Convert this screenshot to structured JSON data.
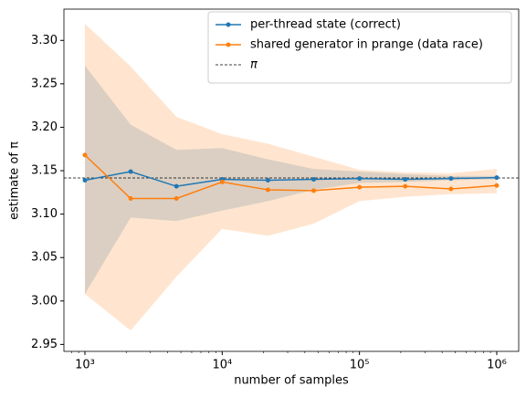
{
  "chart_data": {
    "type": "line",
    "x_label": "number of samples",
    "y_label": "estimate of π",
    "log_x": true,
    "x": [
      1000,
      2154,
      4642,
      10000,
      21544,
      46416,
      100000,
      215443,
      464159,
      1000000
    ],
    "xlim": [
      703,
      1445000
    ],
    "ylim": [
      2.942,
      3.336
    ],
    "xticks": [
      {
        "value": 1000,
        "label": "10³"
      },
      {
        "value": 10000,
        "label": "10⁴"
      },
      {
        "value": 100000,
        "label": "10⁵"
      },
      {
        "value": 1000000,
        "label": "10⁶"
      }
    ],
    "yticks": [
      {
        "value": 2.95,
        "label": "2.95"
      },
      {
        "value": 3.0,
        "label": "3.00"
      },
      {
        "value": 3.05,
        "label": "3.05"
      },
      {
        "value": 3.1,
        "label": "3.10"
      },
      {
        "value": 3.15,
        "label": "3.15"
      },
      {
        "value": 3.2,
        "label": "3.20"
      },
      {
        "value": 3.25,
        "label": "3.25"
      },
      {
        "value": 3.3,
        "label": "3.30"
      }
    ],
    "series": [
      {
        "name": "per-thread state (correct)",
        "color": "#1f77b4",
        "values": [
          3.139,
          3.149,
          3.132,
          3.14,
          3.139,
          3.14,
          3.141,
          3.14,
          3.141,
          3.142
        ],
        "upper": [
          3.271,
          3.203,
          3.174,
          3.176,
          3.163,
          3.152,
          3.149,
          3.146,
          3.144,
          3.144
        ],
        "lower": [
          3.008,
          3.096,
          3.092,
          3.104,
          3.115,
          3.128,
          3.136,
          3.137,
          3.139,
          3.14
        ]
      },
      {
        "name": "shared generator in prange (data race)",
        "color": "#ff7f0e",
        "values": [
          3.168,
          3.118,
          3.118,
          3.137,
          3.128,
          3.127,
          3.131,
          3.132,
          3.129,
          3.133
        ],
        "upper": [
          3.319,
          3.27,
          3.212,
          3.192,
          3.181,
          3.166,
          3.151,
          3.148,
          3.147,
          3.152
        ],
        "lower": [
          3.008,
          2.966,
          3.028,
          3.083,
          3.075,
          3.089,
          3.115,
          3.12,
          3.123,
          3.124
        ]
      }
    ],
    "reference_line": {
      "name": "π",
      "value": 3.141592653589793,
      "color": "#000000",
      "style": "dashed"
    },
    "legend": "upper right"
  }
}
